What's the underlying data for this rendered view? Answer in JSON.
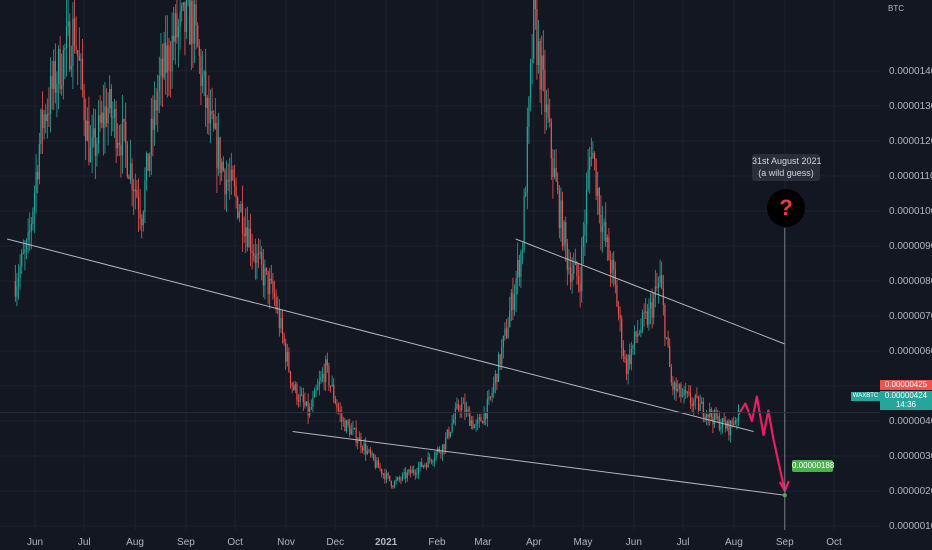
{
  "chart_data": {
    "type": "candlestick",
    "pair": "WAXBTC",
    "currency": "BTC",
    "y_axis": {
      "ylim": [
        6e-07,
        1.58e-05
      ],
      "ticks": [
        "0.00000100",
        "0.00000200",
        "0.00000300",
        "0.00000400",
        "0.00000500",
        "0.00000600",
        "0.00000700",
        "0.00000800",
        "0.00000900",
        "0.00001000",
        "0.00001100",
        "0.00001200",
        "0.00001300",
        "0.00001400"
      ]
    },
    "x_axis": {
      "ticks": [
        {
          "label": "Jun",
          "date": "2020-06-01"
        },
        {
          "label": "Jul",
          "date": "2020-07-01"
        },
        {
          "label": "Aug",
          "date": "2020-08-01"
        },
        {
          "label": "Sep",
          "date": "2020-09-01"
        },
        {
          "label": "Oct",
          "date": "2020-10-01"
        },
        {
          "label": "Nov",
          "date": "2020-11-01"
        },
        {
          "label": "Dec",
          "date": "2020-12-01"
        },
        {
          "label": "2021",
          "date": "2021-01-01"
        },
        {
          "label": "Feb",
          "date": "2021-02-01"
        },
        {
          "label": "Mar",
          "date": "2021-03-01"
        },
        {
          "label": "Apr",
          "date": "2021-04-01"
        },
        {
          "label": "May",
          "date": "2021-05-01"
        },
        {
          "label": "Jun",
          "date": "2021-06-01"
        },
        {
          "label": "Jul",
          "date": "2021-07-01"
        },
        {
          "label": "Aug",
          "date": "2021-08-01"
        },
        {
          "label": "Sep",
          "date": "2021-09-01"
        },
        {
          "label": "Oct",
          "date": "2021-10-01"
        }
      ]
    },
    "price_path": [
      {
        "date": "2020-05-20",
        "close": 8e-06
      },
      {
        "date": "2020-05-28",
        "close": 9e-06
      },
      {
        "date": "2020-06-05",
        "close": 1.25e-05
      },
      {
        "date": "2020-06-15",
        "close": 1.4e-05
      },
      {
        "date": "2020-06-25",
        "close": 1.52e-05
      },
      {
        "date": "2020-07-05",
        "close": 1.15e-05
      },
      {
        "date": "2020-07-15",
        "close": 1.3e-05
      },
      {
        "date": "2020-07-25",
        "close": 1.2e-05
      },
      {
        "date": "2020-08-05",
        "close": 1e-05
      },
      {
        "date": "2020-08-15",
        "close": 1.35e-05
      },
      {
        "date": "2020-08-25",
        "close": 1.5e-05
      },
      {
        "date": "2020-09-05",
        "close": 1.55e-05
      },
      {
        "date": "2020-09-15",
        "close": 1.25e-05
      },
      {
        "date": "2020-09-25",
        "close": 1.1e-05
      },
      {
        "date": "2020-10-05",
        "close": 1e-05
      },
      {
        "date": "2020-10-15",
        "close": 8.5e-06
      },
      {
        "date": "2020-10-25",
        "close": 7.5e-06
      },
      {
        "date": "2020-11-05",
        "close": 5e-06
      },
      {
        "date": "2020-11-15",
        "close": 4.2e-06
      },
      {
        "date": "2020-11-25",
        "close": 5.5e-06
      },
      {
        "date": "2020-12-05",
        "close": 4e-06
      },
      {
        "date": "2020-12-15",
        "close": 3.5e-06
      },
      {
        "date": "2020-12-25",
        "close": 2.8e-06
      },
      {
        "date": "2021-01-05",
        "close": 2.2e-06
      },
      {
        "date": "2021-01-15",
        "close": 2.5e-06
      },
      {
        "date": "2021-01-25",
        "close": 2.8e-06
      },
      {
        "date": "2021-02-05",
        "close": 3.3e-06
      },
      {
        "date": "2021-02-15",
        "close": 4.5e-06
      },
      {
        "date": "2021-02-25",
        "close": 3.8e-06
      },
      {
        "date": "2021-03-05",
        "close": 4.5e-06
      },
      {
        "date": "2021-03-15",
        "close": 6.5e-06
      },
      {
        "date": "2021-03-25",
        "close": 9e-06
      },
      {
        "date": "2021-04-01",
        "close": 1.55e-05
      },
      {
        "date": "2021-04-08",
        "close": 1.3e-05
      },
      {
        "date": "2021-04-15",
        "close": 1.05e-05
      },
      {
        "date": "2021-04-22",
        "close": 8.5e-06
      },
      {
        "date": "2021-04-29",
        "close": 8e-06
      },
      {
        "date": "2021-05-06",
        "close": 1.2e-05
      },
      {
        "date": "2021-05-13",
        "close": 9.5e-06
      },
      {
        "date": "2021-05-20",
        "close": 8e-06
      },
      {
        "date": "2021-05-27",
        "close": 5.5e-06
      },
      {
        "date": "2021-06-03",
        "close": 6.5e-06
      },
      {
        "date": "2021-06-10",
        "close": 7e-06
      },
      {
        "date": "2021-06-17",
        "close": 8e-06
      },
      {
        "date": "2021-06-24",
        "close": 5e-06
      },
      {
        "date": "2021-07-01",
        "close": 4.7e-06
      },
      {
        "date": "2021-07-08",
        "close": 4.5e-06
      },
      {
        "date": "2021-07-15",
        "close": 4.3e-06
      },
      {
        "date": "2021-07-22",
        "close": 4e-06
      },
      {
        "date": "2021-07-29",
        "close": 3.8e-06
      },
      {
        "date": "2021-08-04",
        "close": 4.24e-06
      }
    ],
    "trendlines": [
      {
        "from": {
          "date": "2020-05-15",
          "price": 9.2e-06
        },
        "to": {
          "date": "2021-08-13",
          "price": 3.7e-06
        }
      },
      {
        "from": {
          "date": "2021-03-21",
          "price": 9.2e-06
        },
        "to": {
          "date": "2021-09-01",
          "price": 6.2e-06
        }
      },
      {
        "from": {
          "date": "2020-11-05",
          "price": 3.7e-06
        },
        "to": {
          "date": "2021-09-01",
          "price": 1.88e-06
        }
      }
    ],
    "projection": [
      {
        "date": "2021-08-04",
        "price": 4.2e-06
      },
      {
        "date": "2021-08-08",
        "price": 4.5e-06
      },
      {
        "date": "2021-08-12",
        "price": 4e-06
      },
      {
        "date": "2021-08-15",
        "price": 4.7e-06
      },
      {
        "date": "2021-08-19",
        "price": 3.6e-06
      },
      {
        "date": "2021-08-22",
        "price": 4.3e-06
      },
      {
        "date": "2021-08-25",
        "price": 3.5e-06
      },
      {
        "date": "2021-09-01",
        "price": 2e-06
      }
    ],
    "current_price_red": "0.00000425",
    "current_price_green": "0.00000424",
    "countdown": "14:36",
    "target_price": "0.00000188",
    "target_date": "2021-09-01",
    "note_line1": "31st August 2021",
    "note_line2": "(a wild guess)",
    "question_mark": "?",
    "colors": {
      "background": "#131722",
      "up": "#26a69a",
      "down": "#ef5350",
      "trendline": "#b2b5be",
      "projection": "#e91e63",
      "grid": "#1e222d",
      "target": "#4caf50"
    }
  }
}
